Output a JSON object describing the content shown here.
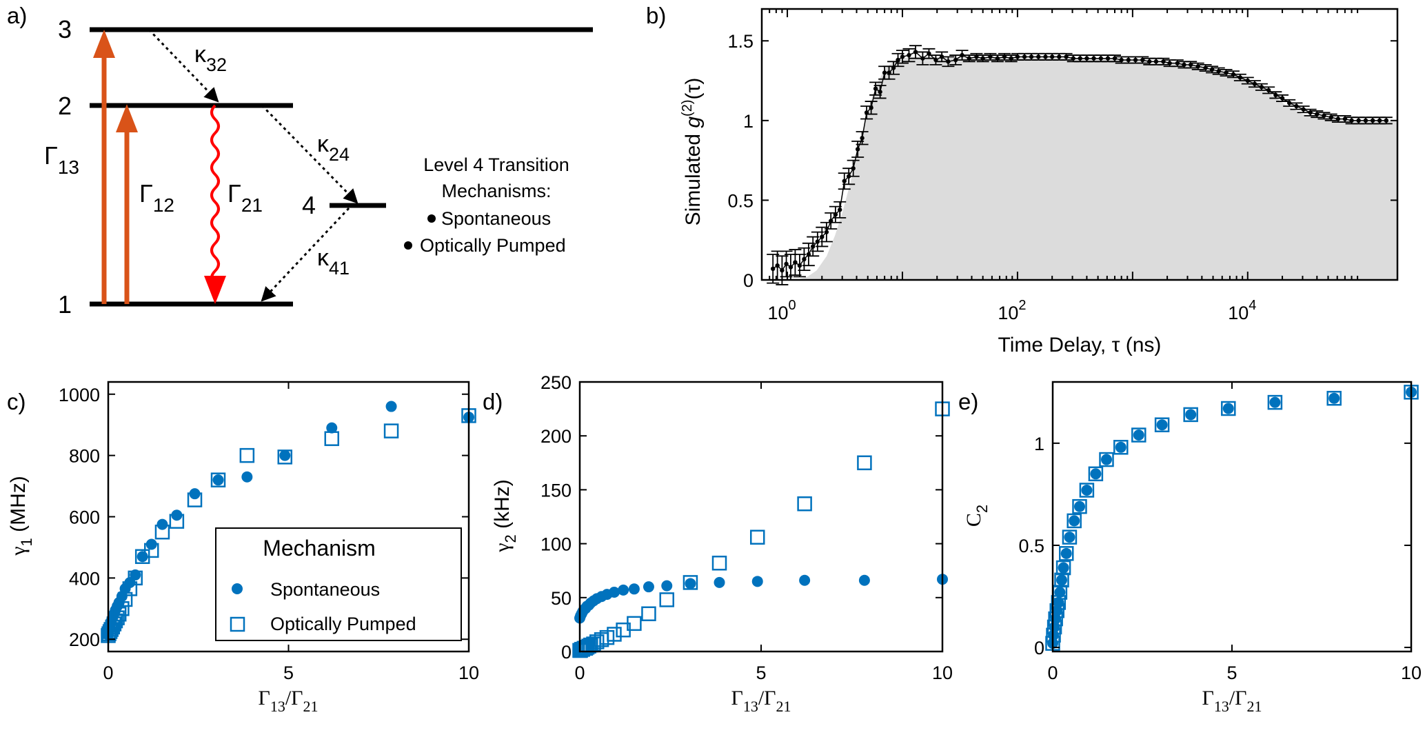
{
  "panel_labels": {
    "a": "a)",
    "b": "b)",
    "c": "c)",
    "d": "d)",
    "e": "e)"
  },
  "energy_diagram": {
    "levels": [
      "1",
      "2",
      "3",
      "4"
    ],
    "rates": [
      {
        "sym": "Γ",
        "sub": "13"
      },
      {
        "sym": "Γ",
        "sub": "12"
      },
      {
        "sym": "Γ",
        "sub": "21"
      },
      {
        "sym": "κ",
        "sub": "32"
      },
      {
        "sym": "κ",
        "sub": "24"
      },
      {
        "sym": "κ",
        "sub": "41"
      }
    ],
    "legend_title_line1": "Level 4 Transition",
    "legend_title_line2": "Mechanisms:",
    "legend_items": [
      "Spontaneous",
      "Optically Pumped"
    ]
  },
  "colors": {
    "blue": "#0072BD",
    "orange": "#D95319",
    "red": "#FF0000",
    "fill_gray": "#DCDCDC"
  },
  "legend": {
    "title": "Mechanism",
    "items": [
      "Spontaneous",
      "Optically Pumped"
    ]
  },
  "chart_data": [
    {
      "id": "b",
      "type": "line",
      "xscale": "log",
      "xlim": [
        0.6,
        200000
      ],
      "ylim": [
        0,
        1.7
      ],
      "xlabel": "Time Delay, τ (ns)",
      "ylabel_pre": "Simulated ",
      "ylabel_g": "g",
      "ylabel_sup": "(2)",
      "ylabel_post": "(τ)",
      "xticks": [
        {
          "v": 1,
          "base": "10",
          "exp": "0"
        },
        {
          "v": 100,
          "base": "10",
          "exp": "2"
        },
        {
          "v": 10000,
          "base": "10",
          "exp": "4"
        }
      ],
      "yticks": [
        {
          "v": 0,
          "label": "0"
        },
        {
          "v": 0.5,
          "label": "0.5"
        },
        {
          "v": 1,
          "label": "1"
        },
        {
          "v": 1.5,
          "label": "1.5"
        }
      ],
      "x": [
        0.75,
        0.82,
        0.9,
        0.98,
        1.07,
        1.17,
        1.28,
        1.4,
        1.53,
        1.67,
        1.83,
        2.0,
        2.19,
        2.39,
        2.62,
        2.86,
        3.13,
        3.42,
        3.74,
        4.09,
        4.47,
        4.89,
        5.35,
        5.85,
        6.4,
        7.0,
        7.65,
        8.37,
        9.15,
        10.0,
        11.4,
        13.0,
        15.0,
        17.0,
        19.5,
        22.0,
        25.0,
        29.0,
        33.0,
        38.0,
        44.0,
        50.0,
        58.0,
        67.0,
        77.0,
        88.0,
        100.0,
        115.0,
        132.0,
        152.0,
        175.0,
        200.0,
        230.0,
        265.0,
        305.0,
        350.0,
        400.0,
        460.0,
        530.0,
        610.0,
        700.0,
        800.0,
        920.0,
        1060.0,
        1220.0,
        1400.0,
        1600.0,
        1850.0,
        2100.0,
        2450.0,
        2800.0,
        3200.0,
        3700.0,
        4300.0,
        4900.0,
        5600.0,
        6500.0,
        7500.0,
        8600.0,
        10000.0,
        11500.0,
        13200.0,
        15200.0,
        17500.0,
        20000.0,
        23000.0,
        26500.0,
        30500.0,
        35000.0,
        40000.0,
        46000.0,
        53000.0,
        61000.0,
        70000.0,
        80000.0,
        92000.0,
        106000.0,
        122000.0,
        140000.0,
        160000.0
      ],
      "y": [
        0.07,
        0.09,
        0.06,
        0.1,
        0.08,
        0.11,
        0.09,
        0.13,
        0.16,
        0.21,
        0.24,
        0.27,
        0.3,
        0.37,
        0.41,
        0.44,
        0.62,
        0.65,
        0.7,
        0.82,
        0.89,
        1.05,
        1.08,
        1.2,
        1.18,
        1.3,
        1.3,
        1.33,
        1.38,
        1.4,
        1.41,
        1.43,
        1.39,
        1.42,
        1.38,
        1.4,
        1.37,
        1.38,
        1.41,
        1.39,
        1.4,
        1.39,
        1.4,
        1.39,
        1.4,
        1.39,
        1.4,
        1.4,
        1.4,
        1.4,
        1.4,
        1.4,
        1.4,
        1.4,
        1.39,
        1.39,
        1.39,
        1.39,
        1.39,
        1.39,
        1.39,
        1.38,
        1.38,
        1.38,
        1.38,
        1.37,
        1.37,
        1.37,
        1.36,
        1.36,
        1.35,
        1.35,
        1.34,
        1.33,
        1.32,
        1.31,
        1.3,
        1.29,
        1.27,
        1.25,
        1.23,
        1.21,
        1.19,
        1.16,
        1.14,
        1.11,
        1.09,
        1.07,
        1.05,
        1.04,
        1.03,
        1.02,
        1.01,
        1.01,
        1.0,
        1.0,
        1.0,
        1.0,
        1.0,
        1.0
      ],
      "err": [
        0.09,
        0.09,
        0.09,
        0.08,
        0.08,
        0.08,
        0.07,
        0.07,
        0.07,
        0.06,
        0.06,
        0.06,
        0.06,
        0.05,
        0.05,
        0.05,
        0.05,
        0.05,
        0.05,
        0.05,
        0.04,
        0.04,
        0.04,
        0.04,
        0.04,
        0.04,
        0.04,
        0.04,
        0.04,
        0.04,
        0.04,
        0.04,
        0.04,
        0.03,
        0.03,
        0.03,
        0.03,
        0.03,
        0.03,
        0.02,
        0.02,
        0.02,
        0.02,
        0.02,
        0.02,
        0.02,
        0.02,
        0.02,
        0.02,
        0.02,
        0.02,
        0.02,
        0.02,
        0.02,
        0.02,
        0.02,
        0.02,
        0.02,
        0.02,
        0.02,
        0.02,
        0.02,
        0.02,
        0.02,
        0.02,
        0.02,
        0.02,
        0.02,
        0.02,
        0.02,
        0.02,
        0.02,
        0.02,
        0.02,
        0.02,
        0.02,
        0.02,
        0.02,
        0.02,
        0.02,
        0.02,
        0.02,
        0.02,
        0.02,
        0.02,
        0.02,
        0.02,
        0.02,
        0.02,
        0.02,
        0.02,
        0.02,
        0.02,
        0.02,
        0.02,
        0.02,
        0.02,
        0.02,
        0.02,
        0.02
      ],
      "fill_x": [
        0.6,
        0.9,
        1.2,
        1.5,
        1.8,
        2.2,
        2.6,
        3.0,
        3.5,
        4.0,
        4.6,
        5.3,
        6.0,
        7.0,
        8.0,
        9.0,
        10,
        12,
        15,
        20,
        30,
        50,
        100,
        200,
        400,
        700,
        1000,
        1500,
        2000,
        3000,
        4000,
        5000,
        6000,
        8000,
        10000,
        13000,
        17000,
        22000,
        30000,
        40000,
        60000,
        100000,
        200000
      ],
      "fill_y": [
        0.0,
        0.0,
        0.0,
        0.02,
        0.06,
        0.15,
        0.28,
        0.42,
        0.6,
        0.78,
        0.96,
        1.12,
        1.23,
        1.32,
        1.36,
        1.38,
        1.39,
        1.4,
        1.4,
        1.4,
        1.4,
        1.4,
        1.4,
        1.4,
        1.39,
        1.39,
        1.38,
        1.37,
        1.37,
        1.35,
        1.34,
        1.32,
        1.31,
        1.28,
        1.25,
        1.2,
        1.15,
        1.09,
        1.04,
        1.02,
        1.01,
        1.0,
        1.0
      ]
    },
    {
      "id": "c",
      "type": "scatter",
      "xlim": [
        0,
        10
      ],
      "ylim": [
        160,
        1040
      ],
      "xlabel_sym1": "Γ",
      "xlabel_sub1": "13",
      "xlabel_sym2": "/Γ",
      "xlabel_sub2": "21",
      "ylabel_sym": "γ",
      "ylabel_sub": "1",
      "ylabel_unit": " (MHz)",
      "xticks": [
        {
          "v": 0,
          "label": "0"
        },
        {
          "v": 5,
          "label": "5"
        },
        {
          "v": 10,
          "label": "10"
        }
      ],
      "yticks": [
        {
          "v": 200,
          "label": "200"
        },
        {
          "v": 400,
          "label": "400"
        },
        {
          "v": 600,
          "label": "600"
        },
        {
          "v": 800,
          "label": "800"
        },
        {
          "v": 1000,
          "label": "1000"
        }
      ],
      "series": [
        {
          "name": "Spontaneous",
          "marker": "circle",
          "x": [
            0.0,
            0.02,
            0.05,
            0.08,
            0.12,
            0.16,
            0.2,
            0.25,
            0.3,
            0.38,
            0.47,
            0.6,
            0.75,
            0.95,
            1.2,
            1.5,
            1.9,
            2.4,
            3.05,
            3.85,
            4.9,
            6.2,
            7.85,
            10.0
          ],
          "y": [
            215,
            230,
            245,
            258,
            270,
            283,
            295,
            308,
            320,
            340,
            365,
            385,
            410,
            470,
            510,
            575,
            605,
            675,
            720,
            730,
            800,
            890,
            960,
            925
          ]
        },
        {
          "name": "Optically Pumped",
          "marker": "square",
          "x": [
            0.0,
            0.02,
            0.05,
            0.08,
            0.12,
            0.16,
            0.2,
            0.25,
            0.3,
            0.38,
            0.47,
            0.6,
            0.75,
            0.95,
            1.2,
            1.5,
            1.9,
            2.4,
            3.05,
            3.85,
            4.9,
            6.2,
            7.85,
            10.0
          ],
          "y": [
            212,
            218,
            225,
            232,
            240,
            250,
            260,
            270,
            282,
            300,
            330,
            365,
            400,
            470,
            490,
            550,
            585,
            655,
            720,
            800,
            795,
            855,
            880,
            930
          ]
        }
      ]
    },
    {
      "id": "d",
      "type": "scatter",
      "xlim": [
        0,
        10
      ],
      "ylim": [
        0,
        250
      ],
      "xlabel_sym1": "Γ",
      "xlabel_sub1": "13",
      "xlabel_sym2": "/Γ",
      "xlabel_sub2": "21",
      "ylabel_sym": "γ",
      "ylabel_sub": "2",
      "ylabel_unit": " (kHz)",
      "xticks": [
        {
          "v": 0,
          "label": "0"
        },
        {
          "v": 5,
          "label": "5"
        },
        {
          "v": 10,
          "label": "10"
        }
      ],
      "yticks": [
        {
          "v": 0,
          "label": "0"
        },
        {
          "v": 50,
          "label": "50"
        },
        {
          "v": 100,
          "label": "100"
        },
        {
          "v": 150,
          "label": "150"
        },
        {
          "v": 200,
          "label": "200"
        },
        {
          "v": 250,
          "label": "250"
        }
      ],
      "series": [
        {
          "name": "Spontaneous",
          "marker": "circle",
          "x": [
            0.0,
            0.02,
            0.05,
            0.08,
            0.12,
            0.16,
            0.2,
            0.25,
            0.3,
            0.38,
            0.47,
            0.6,
            0.75,
            0.95,
            1.2,
            1.5,
            1.9,
            2.4,
            3.05,
            3.85,
            4.9,
            6.2,
            7.85,
            10.0
          ],
          "y": [
            31,
            33,
            35,
            37,
            39,
            40,
            42,
            43,
            45,
            47,
            49,
            51,
            53,
            55,
            57,
            58,
            60,
            61,
            63,
            64,
            65,
            66,
            66,
            67
          ]
        },
        {
          "name": "Optically Pumped",
          "marker": "square",
          "x": [
            0.0,
            0.02,
            0.05,
            0.08,
            0.12,
            0.16,
            0.2,
            0.25,
            0.3,
            0.38,
            0.47,
            0.6,
            0.75,
            0.95,
            1.2,
            1.5,
            1.9,
            2.4,
            3.05,
            3.85,
            4.9,
            6.2,
            7.85,
            10.0
          ],
          "y": [
            1,
            1,
            2,
            2,
            3,
            3,
            4,
            5,
            6,
            7,
            9,
            11,
            13,
            16,
            20,
            26,
            35,
            48,
            64,
            82,
            106,
            137,
            175,
            225
          ]
        }
      ]
    },
    {
      "id": "e",
      "type": "scatter",
      "xlim": [
        0,
        10
      ],
      "ylim": [
        -0.02,
        1.3
      ],
      "xlabel_sym1": "Γ",
      "xlabel_sub1": "13",
      "xlabel_sym2": "/Γ",
      "xlabel_sub2": "21",
      "ylabel_sym": "C",
      "ylabel_sub": "2",
      "ylabel_unit": "",
      "xticks": [
        {
          "v": 0,
          "label": "0"
        },
        {
          "v": 5,
          "label": "5"
        },
        {
          "v": 10,
          "label": "10"
        }
      ],
      "yticks": [
        {
          "v": 0,
          "label": "0"
        },
        {
          "v": 0.5,
          "label": "0.5"
        },
        {
          "v": 1,
          "label": "1"
        }
      ],
      "series": [
        {
          "name": "Spontaneous",
          "marker": "circle",
          "x": [
            0.0,
            0.02,
            0.05,
            0.08,
            0.12,
            0.16,
            0.2,
            0.25,
            0.3,
            0.38,
            0.47,
            0.6,
            0.75,
            0.95,
            1.2,
            1.5,
            1.9,
            2.4,
            3.05,
            3.85,
            4.9,
            6.2,
            7.85,
            10.0
          ],
          "y": [
            0.02,
            0.06,
            0.1,
            0.14,
            0.18,
            0.22,
            0.27,
            0.33,
            0.39,
            0.46,
            0.54,
            0.62,
            0.69,
            0.77,
            0.85,
            0.92,
            0.98,
            1.04,
            1.09,
            1.14,
            1.17,
            1.2,
            1.22,
            1.25
          ]
        },
        {
          "name": "Optically Pumped",
          "marker": "square",
          "x": [
            0.0,
            0.02,
            0.05,
            0.08,
            0.12,
            0.16,
            0.2,
            0.25,
            0.3,
            0.38,
            0.47,
            0.6,
            0.75,
            0.95,
            1.2,
            1.5,
            1.9,
            2.4,
            3.05,
            3.85,
            4.9,
            6.2,
            7.85,
            10.0
          ],
          "y": [
            0.02,
            0.06,
            0.1,
            0.14,
            0.18,
            0.22,
            0.27,
            0.33,
            0.39,
            0.46,
            0.54,
            0.62,
            0.69,
            0.77,
            0.85,
            0.92,
            0.98,
            1.04,
            1.09,
            1.14,
            1.17,
            1.2,
            1.22,
            1.25
          ]
        }
      ]
    }
  ]
}
